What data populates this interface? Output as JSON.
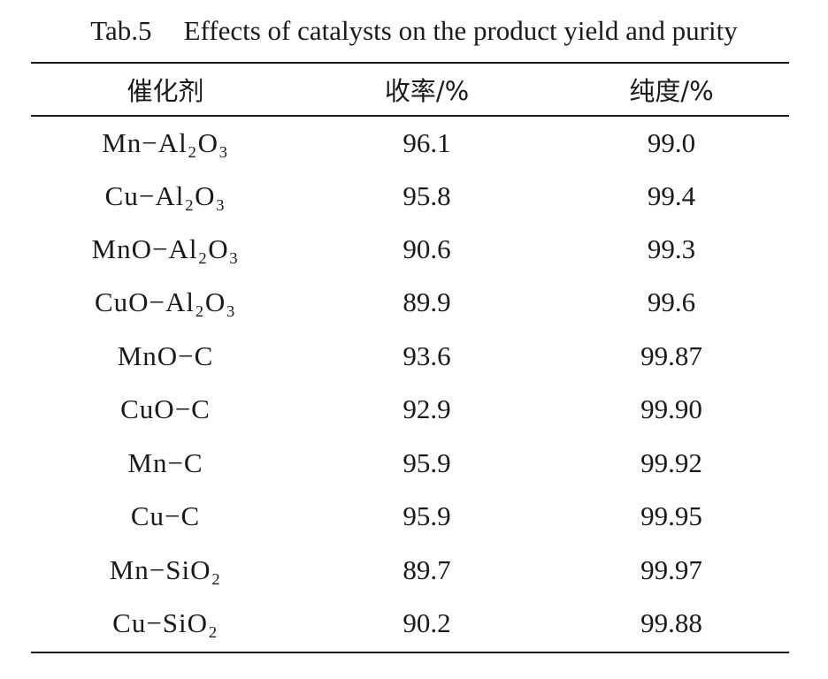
{
  "caption": {
    "number": "Tab.5",
    "title": "Effects of catalysts on the product yield and purity"
  },
  "table": {
    "headers": [
      "催化剂",
      "收率/%",
      "纯度/%"
    ],
    "rows": [
      {
        "catalyst": "Mn−Al₂O₃",
        "yield": "96.1",
        "purity": "99.0"
      },
      {
        "catalyst": "Cu−Al₂O₃",
        "yield": "95.8",
        "purity": "99.4"
      },
      {
        "catalyst": "MnO−Al₂O₃",
        "yield": "90.6",
        "purity": "99.3"
      },
      {
        "catalyst": "CuO−Al₂O₃",
        "yield": "89.9",
        "purity": "99.6"
      },
      {
        "catalyst": "MnO−C",
        "yield": "93.6",
        "purity": "99.87"
      },
      {
        "catalyst": "CuO−C",
        "yield": "92.9",
        "purity": "99.90"
      },
      {
        "catalyst": "Mn−C",
        "yield": "95.9",
        "purity": "99.92"
      },
      {
        "catalyst": "Cu−C",
        "yield": "95.9",
        "purity": "99.95"
      },
      {
        "catalyst": "Mn−SiO₂",
        "yield": "89.7",
        "purity": "99.97"
      },
      {
        "catalyst": "Cu−SiO₂",
        "yield": "90.2",
        "purity": "99.88"
      }
    ]
  }
}
